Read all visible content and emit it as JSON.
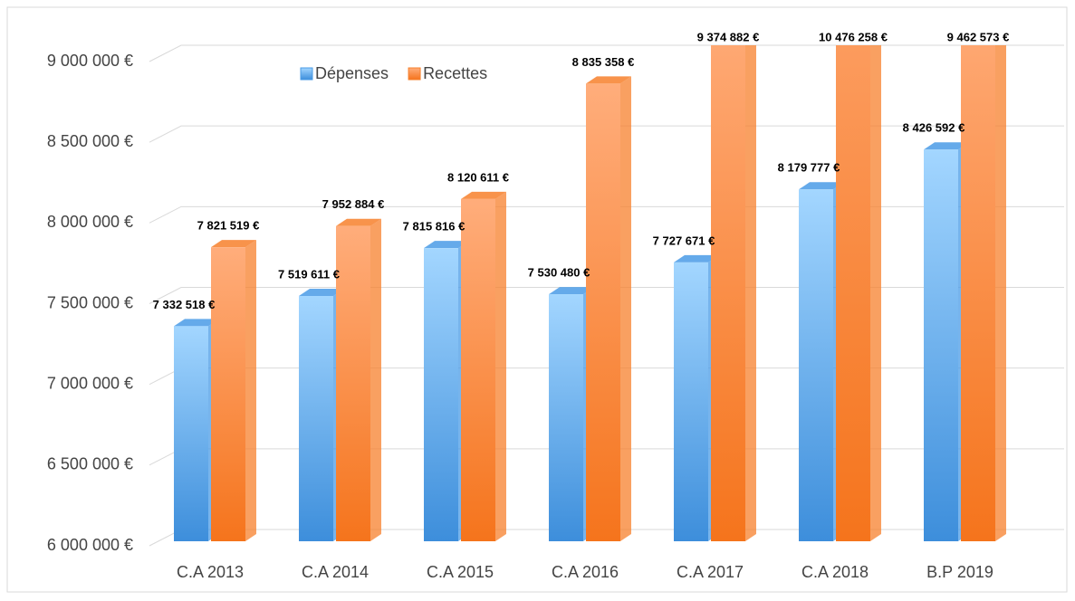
{
  "chart_data": {
    "type": "bar3d",
    "categories": [
      "C.A 2013",
      "C.A 2014",
      "C.A 2015",
      "C.A 2016",
      "C.A 2017",
      "C.A 2018",
      "B.P 2019"
    ],
    "series": [
      {
        "name": "Dépenses",
        "color": "#4a9be6",
        "values": [
          7332518,
          7519611,
          7815816,
          7530480,
          7727671,
          8179777,
          8426592
        ],
        "value_labels": [
          "7 332 518 €",
          "7 519 611 €",
          "7 815 816 €",
          "7 530 480 €",
          "7 727 671 €",
          "8 179 777 €",
          "8 426 592 €"
        ]
      },
      {
        "name": "Recettes",
        "color": "#f7802c",
        "values": [
          7821519,
          7952884,
          8120611,
          8835358,
          9374882,
          10476258,
          9462573
        ],
        "value_labels": [
          "7 821 519 €",
          "7 952 884 €",
          "8 120 611 €",
          "8 835 358 €",
          "9 374 882 €",
          "10 476 258 €",
          "9 462 573 €"
        ]
      }
    ],
    "ylim": [
      6000000,
      9000000
    ],
    "yticks": [
      {
        "value": 6000000,
        "label": "6 000 000 €"
      },
      {
        "value": 6500000,
        "label": "6 500 000 €"
      },
      {
        "value": 7000000,
        "label": "7 000 000 €"
      },
      {
        "value": 7500000,
        "label": "7 500 000 €"
      },
      {
        "value": 8000000,
        "label": "8 000 000 €"
      },
      {
        "value": 8500000,
        "label": "8 500 000 €"
      },
      {
        "value": 9000000,
        "label": "9 000 000 €"
      }
    ],
    "grid": true,
    "legend": "top"
  }
}
